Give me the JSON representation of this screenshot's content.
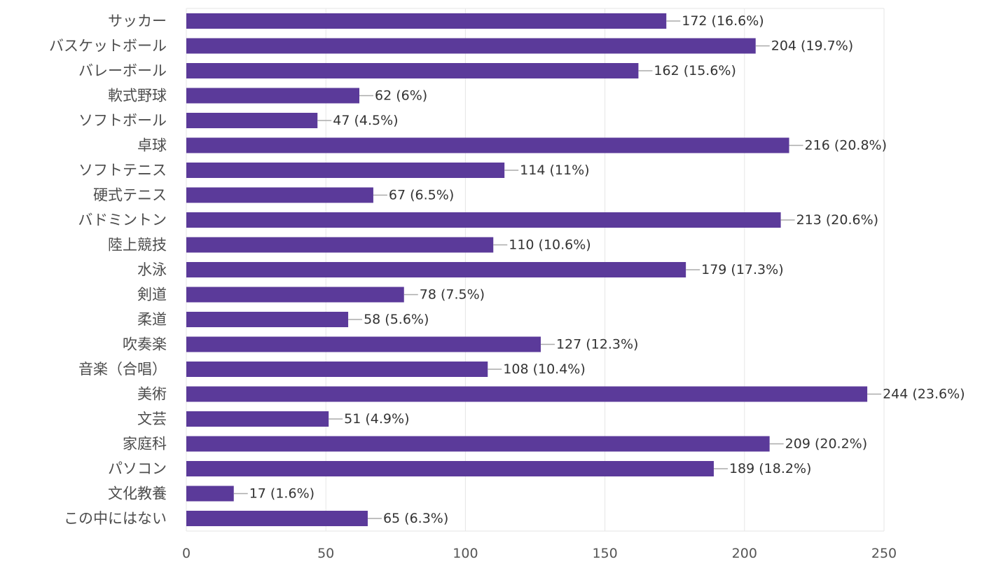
{
  "chart_data": {
    "type": "bar",
    "orientation": "horizontal",
    "categories": [
      "サッカー",
      "バスケットボール",
      "バレーボール",
      "軟式野球",
      "ソフトボール",
      "卓球",
      "ソフトテニス",
      "硬式テニス",
      "バドミントン",
      "陸上競技",
      "水泳",
      "剣道",
      "柔道",
      "吹奏楽",
      "音楽（合唱）",
      "美術",
      "文芸",
      "家庭科",
      "パソコン",
      "文化教養",
      "この中にはない"
    ],
    "values": [
      172,
      204,
      162,
      62,
      47,
      216,
      114,
      67,
      213,
      110,
      179,
      78,
      58,
      127,
      108,
      244,
      51,
      209,
      189,
      17,
      65
    ],
    "data_labels": [
      "172 (16.6%)",
      "204 (19.7%)",
      "162 (15.6%)",
      "62 (6%)",
      "47 (4.5%)",
      "216 (20.8%)",
      "114 (11%)",
      "67 (6.5%)",
      "213 (20.6%)",
      "110 (10.6%)",
      "179 (17.3%)",
      "78 (7.5%)",
      "58 (5.6%)",
      "127 (12.3%)",
      "108 (10.4%)",
      "244 (23.6%)",
      "51 (4.9%)",
      "209 (20.2%)",
      "189 (18.2%)",
      "17 (1.6%)",
      "65 (6.3%)"
    ],
    "xlim": [
      0,
      250
    ],
    "xticks": [
      0,
      50,
      100,
      150,
      200,
      250
    ],
    "grid": true,
    "legend": "none",
    "colors": {
      "bar": "#5b3a9a",
      "grid": "#e6e6e6",
      "leader": "#aaaaaa"
    }
  }
}
